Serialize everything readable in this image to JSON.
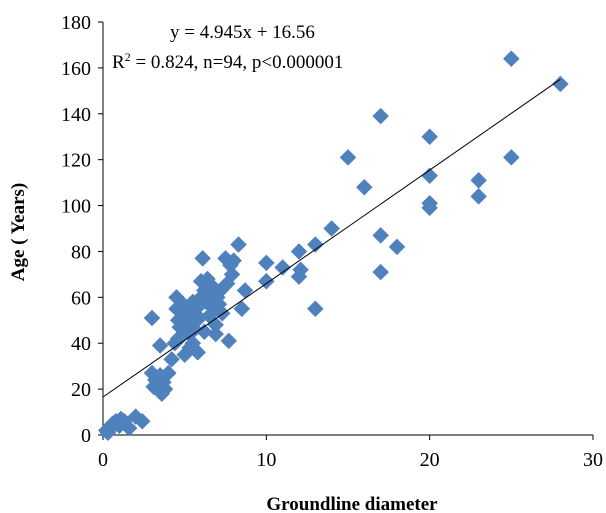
{
  "chart_data": {
    "type": "scatter",
    "xlabel": "Groundline diameter",
    "ylabel": "Age ( Years)",
    "xlim": [
      0,
      30
    ],
    "ylim": [
      0,
      180
    ],
    "xticks": [
      "0",
      "10",
      "20",
      "30"
    ],
    "yticks": [
      "0",
      "20",
      "40",
      "60",
      "80",
      "100",
      "120",
      "140",
      "160",
      "180"
    ],
    "grid": false,
    "legend": "none",
    "marker": "diamond",
    "marker_color": "#4F81BD",
    "trendline": {
      "slope": 4.945,
      "intercept": 16.56,
      "x_range": [
        0,
        28
      ],
      "color": "#000000"
    },
    "annotations": {
      "equation": "y = 4.945x + 16.56",
      "r2_prefix": "R",
      "r2_sup": "2",
      "r2_rest": " = 0.824, n=94, p<0.000001"
    },
    "points": [
      [
        0.2,
        2
      ],
      [
        0.3,
        1
      ],
      [
        0.5,
        3
      ],
      [
        0.6,
        5
      ],
      [
        0.8,
        6
      ],
      [
        1.0,
        4
      ],
      [
        1.1,
        7
      ],
      [
        1.3,
        6
      ],
      [
        1.6,
        3
      ],
      [
        2.0,
        8
      ],
      [
        3.0,
        51
      ],
      [
        3.0,
        27
      ],
      [
        3.1,
        21
      ],
      [
        3.2,
        24
      ],
      [
        3.4,
        23
      ],
      [
        3.5,
        39
      ],
      [
        3.5,
        26
      ],
      [
        3.6,
        18
      ],
      [
        3.7,
        23
      ],
      [
        3.8,
        20
      ],
      [
        4.0,
        27
      ],
      [
        4.2,
        33
      ],
      [
        4.4,
        40
      ],
      [
        4.5,
        60
      ],
      [
        4.5,
        55
      ],
      [
        4.6,
        50
      ],
      [
        4.7,
        47
      ],
      [
        4.8,
        43
      ],
      [
        4.9,
        57
      ],
      [
        5.0,
        52
      ],
      [
        5.0,
        35
      ],
      [
        5.1,
        48
      ],
      [
        5.2,
        53
      ],
      [
        5.3,
        44
      ],
      [
        5.4,
        50
      ],
      [
        5.5,
        58
      ],
      [
        5.5,
        40
      ],
      [
        5.6,
        46
      ],
      [
        5.7,
        55
      ],
      [
        5.8,
        36
      ],
      [
        5.9,
        51
      ],
      [
        6.0,
        67
      ],
      [
        6.0,
        60
      ],
      [
        6.1,
        77
      ],
      [
        6.2,
        63
      ],
      [
        6.2,
        45
      ],
      [
        6.3,
        58
      ],
      [
        6.4,
        68
      ],
      [
        6.5,
        52
      ],
      [
        6.6,
        61
      ],
      [
        6.7,
        56
      ],
      [
        6.8,
        64
      ],
      [
        6.9,
        48
      ],
      [
        7.0,
        60
      ],
      [
        7.1,
        57
      ],
      [
        7.2,
        63
      ],
      [
        7.3,
        53
      ],
      [
        7.5,
        77
      ],
      [
        7.6,
        66
      ],
      [
        7.7,
        41
      ],
      [
        7.8,
        74
      ],
      [
        7.9,
        70
      ],
      [
        8.0,
        76
      ],
      [
        8.3,
        83
      ],
      [
        8.5,
        55
      ],
      [
        8.7,
        63
      ],
      [
        10.0,
        75
      ],
      [
        10.0,
        67
      ],
      [
        11.0,
        73
      ],
      [
        12.0,
        80
      ],
      [
        12.0,
        69
      ],
      [
        12.1,
        72
      ],
      [
        13.0,
        83
      ],
      [
        13.0,
        55
      ],
      [
        14.0,
        90
      ],
      [
        15.0,
        121
      ],
      [
        16.0,
        108
      ],
      [
        17.0,
        139
      ],
      [
        17.0,
        87
      ],
      [
        17.0,
        71
      ],
      [
        18.0,
        82
      ],
      [
        20.0,
        130
      ],
      [
        20.0,
        113
      ],
      [
        20.0,
        101
      ],
      [
        20.0,
        99
      ],
      [
        23.0,
        111
      ],
      [
        23.0,
        104
      ],
      [
        25.0,
        164
      ],
      [
        25.0,
        121
      ],
      [
        28.0,
        153
      ],
      [
        4.6,
        42
      ],
      [
        5.3,
        38
      ],
      [
        6.9,
        44
      ],
      [
        2.4,
        6
      ]
    ]
  }
}
